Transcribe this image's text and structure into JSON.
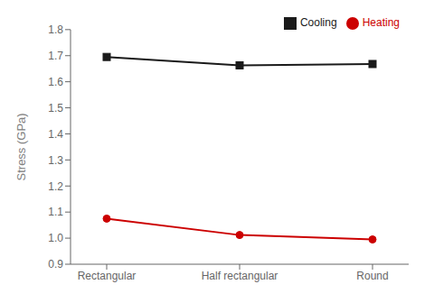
{
  "chart_data": {
    "type": "line",
    "categories": [
      "Rectangular",
      "Half rectangular",
      "Round"
    ],
    "series": [
      {
        "name": "Cooling",
        "color": "#1a1a1a",
        "marker": "square",
        "values": [
          1.695,
          1.663,
          1.668
        ]
      },
      {
        "name": "Heating",
        "color": "#cc0000",
        "marker": "circle",
        "values": [
          1.075,
          1.012,
          0.995
        ]
      }
    ],
    "ylabel": "Stress (GPa)",
    "ylim": [
      0.9,
      1.8
    ],
    "yticks": [
      0.9,
      {
        "value": 1.0,
        "label": "1.0"
      },
      1.1,
      1.2,
      1.3,
      1.4,
      1.5,
      1.6,
      1.7,
      1.8
    ],
    "legend": "upper right",
    "grid": false
  }
}
